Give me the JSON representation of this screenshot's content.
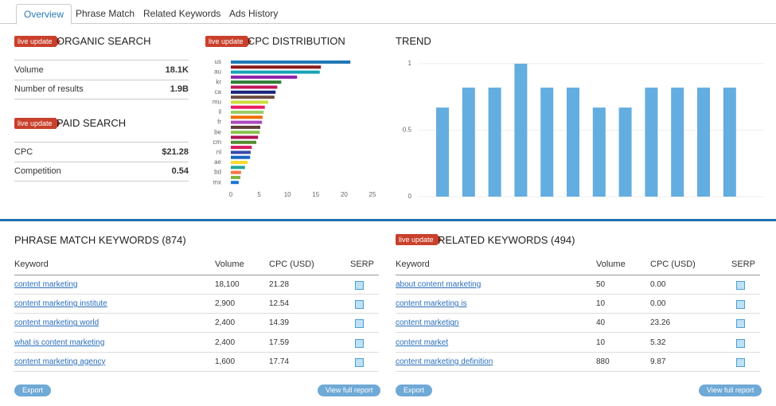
{
  "tabs": [
    "Overview",
    "Phrase Match",
    "Related Keywords",
    "Ads History"
  ],
  "organic": {
    "badge": "live update",
    "title": "ORGANIC SEARCH",
    "rows": [
      [
        "Volume",
        "18.1K"
      ],
      [
        "Number of results",
        "1.9B"
      ]
    ]
  },
  "paid": {
    "badge": "live update",
    "title": "PAID SEARCH",
    "rows": [
      [
        "CPC",
        "$21.28"
      ],
      [
        "Competition",
        "0.54"
      ]
    ]
  },
  "charts": [
    {
      "type": "bar",
      "orientation": "horizontal",
      "badge": "live update",
      "title": "CPC DISTRIBUTION",
      "categories": [
        "us",
        null,
        "au",
        null,
        "kr",
        null,
        "ca",
        null,
        "mu",
        null,
        "il",
        null,
        "fr",
        null,
        "be",
        null,
        "cm",
        null,
        "nl",
        null,
        "ae",
        null,
        "bd",
        null,
        "mx"
      ],
      "values": [
        21.1,
        15.9,
        15.7,
        11.7,
        8.9,
        8.2,
        7.9,
        7.7,
        6.6,
        6.0,
        5.8,
        5.6,
        5.5,
        5.2,
        5.1,
        4.8,
        4.5,
        3.7,
        3.5,
        3.4,
        3.0,
        2.5,
        1.8,
        1.7,
        1.4
      ],
      "colors": [
        "#1f77b4",
        "#8b1a1a",
        "#17a2b8",
        "#8e24aa",
        "#2e7d32",
        "#c2185b",
        "#1a237e",
        "#6d4c41",
        "#cddc39",
        "#e91e63",
        "#9ccc65",
        "#ef6c00",
        "#ab47bc",
        "#5d4037",
        "#8bc34a",
        "#ad1457",
        "#558b2f",
        "#d81b60",
        "#3949ab",
        "#1565c0",
        "#fdd835",
        "#26a69a",
        "#ff7043",
        "#7cb342",
        "#1976d2"
      ],
      "xlim": [
        0,
        25
      ],
      "xticks": [
        0,
        5,
        10,
        15,
        20,
        25
      ]
    },
    {
      "type": "bar",
      "title": "TREND",
      "values": [
        0.67,
        0.82,
        0.82,
        1,
        0.82,
        0.82,
        0.67,
        0.67,
        0.82,
        0.82,
        0.82,
        0.82
      ],
      "color": "#64ade0",
      "ylim": [
        0,
        1
      ],
      "yticks": [
        0,
        0.5,
        1
      ],
      "grid": true
    }
  ],
  "phrase": {
    "title": "PHRASE MATCH KEYWORDS (874)",
    "headers": [
      "Keyword",
      "Volume",
      "CPC (USD)",
      "SERP"
    ],
    "rows": [
      [
        "content marketing",
        "18,100",
        "21.28"
      ],
      [
        "content marketing institute",
        "2,900",
        "12.54"
      ],
      [
        "content marketing world",
        "2,400",
        "14.39"
      ],
      [
        "what is content marketing",
        "2,400",
        "17.59"
      ],
      [
        "content marketing agency",
        "1,600",
        "17.74"
      ]
    ],
    "buttons": [
      "Export",
      "View full report"
    ]
  },
  "related": {
    "badge": "live update",
    "title": "RELATED KEYWORDS (494)",
    "headers": [
      "Keyword",
      "Volume",
      "CPC (USD)",
      "SERP"
    ],
    "rows": [
      [
        "about content marketing",
        "50",
        "0.00"
      ],
      [
        "content marketing is",
        "10",
        "0.00"
      ],
      [
        "content marketign",
        "40",
        "23.26"
      ],
      [
        "content market",
        "10",
        "5.32"
      ],
      [
        "content marketing definition",
        "880",
        "9.87"
      ]
    ],
    "buttons": [
      "Export",
      "View full report"
    ]
  }
}
